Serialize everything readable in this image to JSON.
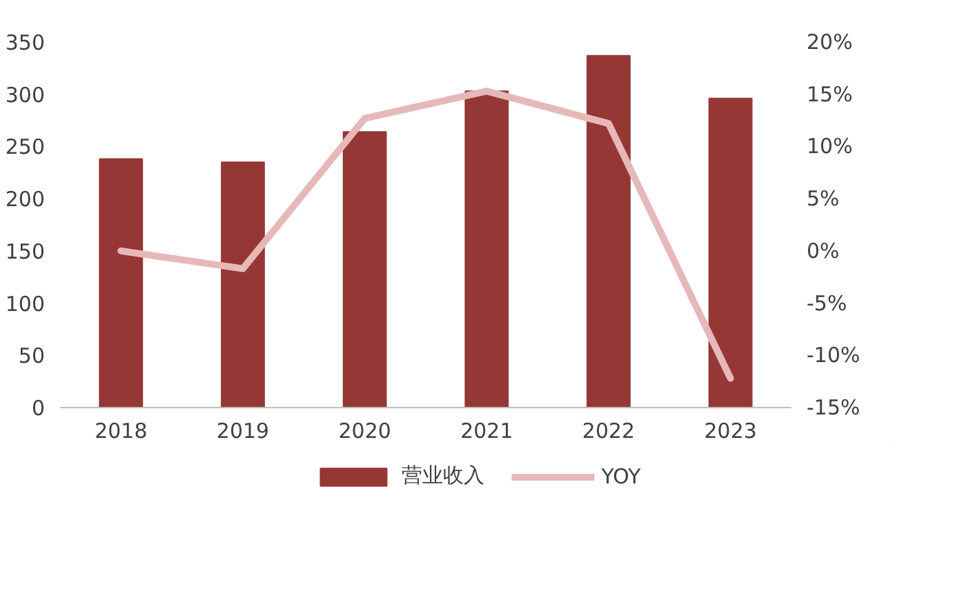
{
  "chart_data": {
    "type": "bar",
    "categories": [
      "2018",
      "2019",
      "2020",
      "2021",
      "2022",
      "2023"
    ],
    "series": [
      {
        "name": "营业收入",
        "color": "#953735",
        "values": [
          238,
          235,
          264,
          303,
          337,
          296
        ]
      },
      {
        "name": "YOY",
        "type": "line",
        "axis": "y2",
        "color": "#e6b9b8",
        "values": [
          0,
          -1.7,
          12.7,
          15.3,
          12.2,
          -12.2
        ]
      }
    ],
    "ylim": [
      0,
      350
    ],
    "yticks": [
      0,
      50,
      100,
      150,
      200,
      250,
      300,
      350
    ],
    "y2lim": [
      -15,
      20
    ],
    "y2ticks": [
      {
        "value": -15,
        "label": "-15%"
      },
      {
        "value": -10,
        "label": "-10%"
      },
      {
        "value": -5,
        "label": "-5%"
      },
      {
        "value": 0,
        "label": "0%"
      },
      {
        "value": 5,
        "label": "5%"
      },
      {
        "value": 10,
        "label": "10%"
      },
      {
        "value": 15,
        "label": "15%"
      },
      {
        "value": 20,
        "label": "20%"
      }
    ],
    "grid": false,
    "legend": "bottom"
  }
}
